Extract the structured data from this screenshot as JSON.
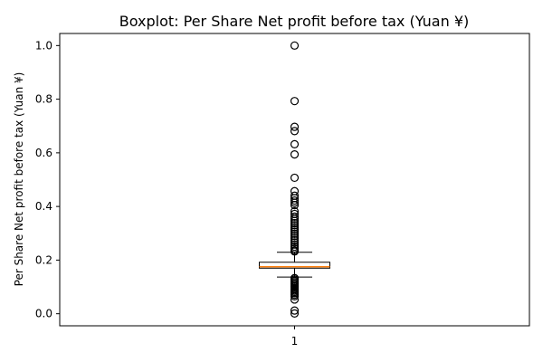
{
  "chart_data": {
    "type": "box",
    "title": "Boxplot:  Per Share Net profit before tax (Yuan ¥)",
    "xlabel": "",
    "ylabel": "Per Share Net profit before tax (Yuan ¥)",
    "categories": [
      "1"
    ],
    "ylim": [
      -0.045,
      1.045
    ],
    "yticks": [
      0.0,
      0.2,
      0.4,
      0.6,
      0.8,
      1.0
    ],
    "yticklabels": [
      "0.0",
      "0.2",
      "0.4",
      "0.6",
      "0.8",
      "1.0"
    ],
    "grid": false,
    "series": [
      {
        "q1": 0.17,
        "median": 0.175,
        "q3": 0.192,
        "whisker_low": 0.137,
        "whisker_high": 0.229,
        "outliers": [
          1.0,
          0.793,
          0.697,
          0.681,
          0.632,
          0.594,
          0.507,
          0.457,
          0.44,
          0.431,
          0.422,
          0.414,
          0.405,
          0.382,
          0.372,
          0.362,
          0.354,
          0.346,
          0.338,
          0.33,
          0.322,
          0.314,
          0.306,
          0.298,
          0.29,
          0.282,
          0.274,
          0.266,
          0.258,
          0.25,
          0.243,
          0.236,
          0.232,
          0.133,
          0.128,
          0.122,
          0.117,
          0.112,
          0.107,
          0.102,
          0.097,
          0.092,
          0.087,
          0.082,
          0.077,
          0.071,
          0.065,
          0.053,
          0.012,
          0.001
        ]
      }
    ],
    "colors": {
      "box": "#000000",
      "median": "#ff7f0e",
      "outlier_face": "none",
      "outlier_edge": "#000000"
    }
  }
}
